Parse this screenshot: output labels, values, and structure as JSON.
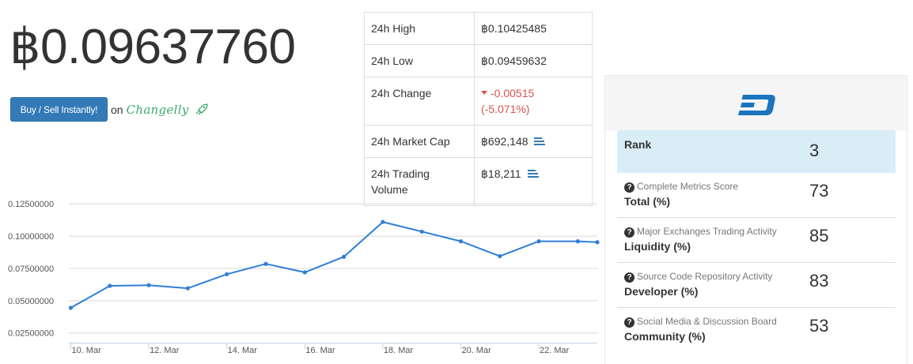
{
  "price": "฿0.09637760",
  "buy_button_label": "Buy / Sell Instantly!",
  "on_text": "on",
  "changelly_logo": "Changelly",
  "stats": [
    {
      "label": "24h High",
      "value": "฿0.10425485"
    },
    {
      "label": "24h Low",
      "value": "฿0.09459632"
    },
    {
      "label": "24h Change",
      "value": "-0.00515",
      "value2": "(-5.071%)"
    },
    {
      "label": "24h Market Cap",
      "value": "฿692,148"
    },
    {
      "label": "24h Trading Volume",
      "value": "฿18,211"
    }
  ],
  "chart_data": {
    "type": "line",
    "y_tick_labels": [
      "0.12500000",
      "0.10000000",
      "0.07500000",
      "0.05000000",
      "0.02500000"
    ],
    "y_ticks": [
      0.125,
      0.1,
      0.075,
      0.05,
      0.025
    ],
    "x_tick_labels": [
      "10. Mar",
      "12. Mar",
      "14. Mar",
      "16. Mar",
      "18. Mar",
      "20. Mar",
      "22. Mar"
    ],
    "x_ticks": [
      10,
      12,
      14,
      16,
      18,
      20,
      22
    ],
    "xlim": [
      9.95,
      23.5
    ],
    "ylim": [
      0.0175,
      0.13
    ],
    "x": [
      10,
      11,
      12,
      13,
      14,
      15,
      16,
      17,
      18,
      19,
      20,
      21,
      22,
      23,
      23.5
    ],
    "y": [
      0.0445,
      0.0615,
      0.062,
      0.0596,
      0.0705,
      0.0785,
      0.072,
      0.084,
      0.111,
      0.1035,
      0.096,
      0.0845,
      0.096,
      0.096,
      0.0953
    ],
    "line_color": "#2f7ed8",
    "grid": true
  },
  "panel": {
    "logo_icon": "dash-logo-icon",
    "rank_label": "Rank",
    "rank_value": "3",
    "metrics": [
      {
        "sub": "Complete Metrics Score",
        "label": "Total (%)",
        "value": "73"
      },
      {
        "sub": "Major Exchanges Trading Activity",
        "label": "Liquidity (%)",
        "value": "85"
      },
      {
        "sub": "Source Code Repository Activity",
        "label": "Developer (%)",
        "value": "83"
      },
      {
        "sub": "Social Media & Discussion Board",
        "label": "Community (%)",
        "value": "53"
      }
    ]
  },
  "colors": {
    "accent": "#337ab7",
    "down": "#d9534f",
    "rank_bg": "#d9edf7",
    "dash_blue": "#1c75bc"
  }
}
